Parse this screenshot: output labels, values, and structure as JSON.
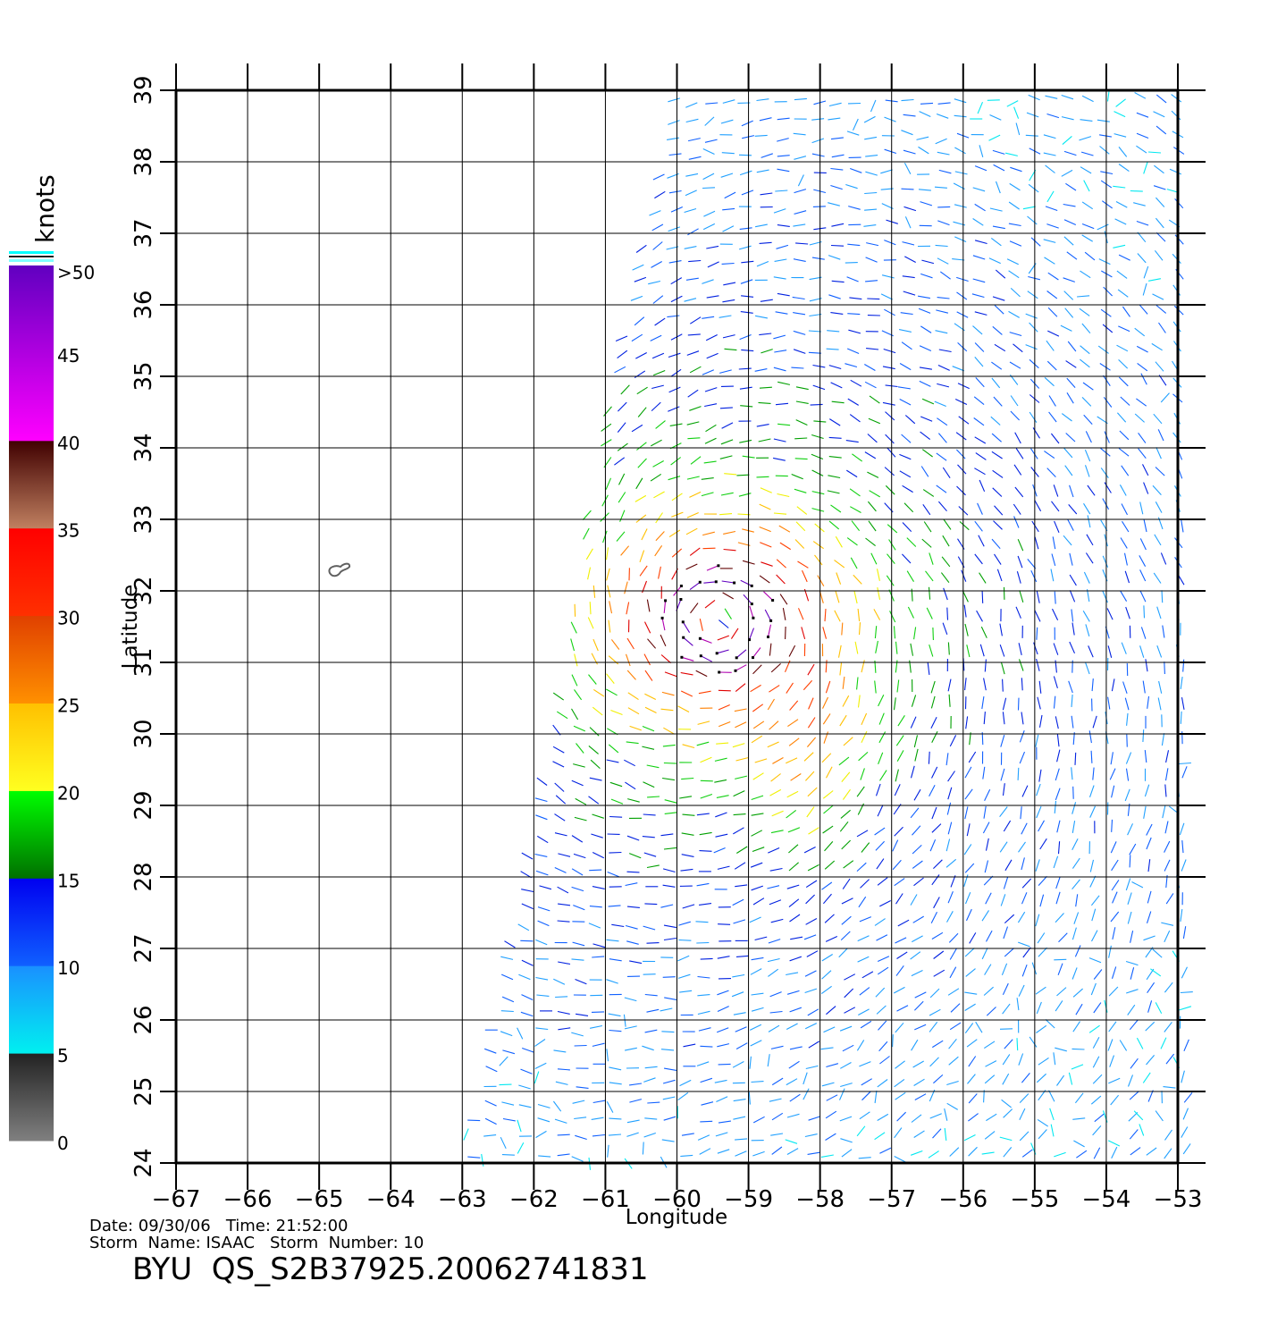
{
  "map": {
    "xlabel": "Longitude",
    "ylabel": "Latitude",
    "lon_range": [
      -67,
      -53
    ],
    "lat_range": [
      24,
      39
    ],
    "lon_ticks": [
      "-67",
      "-66",
      "-65",
      "-64",
      "-63",
      "-62",
      "-61",
      "-60",
      "-59",
      "-58",
      "-57",
      "-56",
      "-55",
      "-54",
      "-53"
    ],
    "lat_ticks": [
      "24",
      "25",
      "26",
      "27",
      "28",
      "29",
      "30",
      "31",
      "32",
      "33",
      "34",
      "35",
      "36",
      "37",
      "38",
      "39"
    ],
    "grid": true,
    "storm_center": {
      "lon": -59.4,
      "lat": 31.6
    },
    "wind_barb_colors_by_speed": true
  },
  "colorbar": {
    "unit": "knots",
    "labels": [
      "0",
      "5",
      "10",
      "15",
      "20",
      "25",
      "30",
      "35",
      "40",
      "45",
      ">50"
    ],
    "bands": [
      {
        "from": 0,
        "to": 5,
        "colors": [
          "#808080",
          "#222222"
        ]
      },
      {
        "from": 5,
        "to": 10,
        "colors": [
          "#00f0f0",
          "#1a90ff"
        ]
      },
      {
        "from": 10,
        "to": 15,
        "colors": [
          "#1060ff",
          "#0000f0"
        ]
      },
      {
        "from": 15,
        "to": 20,
        "colors": [
          "#007000",
          "#00ff00"
        ]
      },
      {
        "from": 20,
        "to": 25,
        "colors": [
          "#ffff20",
          "#ffc000"
        ]
      },
      {
        "from": 25,
        "to": 30,
        "colors": [
          "#ff9000",
          "#e04000"
        ]
      },
      {
        "from": 30,
        "to": 35,
        "colors": [
          "#ff3000",
          "#ff0000"
        ]
      },
      {
        "from": 35,
        "to": 40,
        "colors": [
          "#c08060",
          "#400000"
        ]
      },
      {
        "from": 40,
        "to": 50,
        "colors": [
          "#ff00ff",
          "#6000c0"
        ]
      }
    ]
  },
  "footer": {
    "date_line": "Date: 09/30/06   Time: 21:52:00",
    "storm_line": "Storm  Name: ISAAC   Storm  Number: 10",
    "file_id": "BYU  QS_S2B37925.20062741831"
  }
}
